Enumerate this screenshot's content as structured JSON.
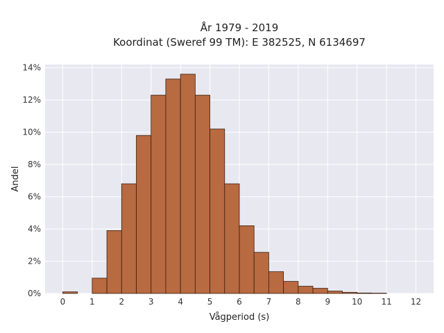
{
  "chart_data": {
    "type": "bar",
    "title_line1": "År 1979 - 2019",
    "title_line2": "Koordinat (Sweref 99 TM): E 382525, N 6134697",
    "xlabel": "Vågperiod (s)",
    "ylabel": "Andel",
    "xlim": [
      -0.6,
      12.6
    ],
    "ylim": [
      0,
      14.2
    ],
    "bin_width": 0.5,
    "x_ticks": [
      0,
      1,
      2,
      3,
      4,
      5,
      6,
      7,
      8,
      9,
      10,
      11,
      12
    ],
    "x_tick_labels": [
      "0",
      "1",
      "2",
      "3",
      "4",
      "5",
      "6",
      "7",
      "8",
      "9",
      "10",
      "11",
      "12"
    ],
    "y_ticks": [
      0,
      2,
      4,
      6,
      8,
      10,
      12,
      14
    ],
    "y_tick_labels": [
      "0%",
      "2%",
      "4%",
      "6%",
      "8%",
      "10%",
      "12%",
      "14%"
    ],
    "grid": true,
    "colors": {
      "bar": "#b86a40",
      "bar_edge": "#3a1f10",
      "plot_bg": "#e8e8f0",
      "grid": "#ffffff"
    },
    "bins": [
      {
        "x0": 0.0,
        "value": 0.1
      },
      {
        "x0": 1.0,
        "value": 0.95
      },
      {
        "x0": 1.5,
        "value": 3.9
      },
      {
        "x0": 2.0,
        "value": 6.8
      },
      {
        "x0": 2.5,
        "value": 9.8
      },
      {
        "x0": 3.0,
        "value": 12.3
      },
      {
        "x0": 3.5,
        "value": 13.3
      },
      {
        "x0": 4.0,
        "value": 13.6
      },
      {
        "x0": 4.5,
        "value": 12.3
      },
      {
        "x0": 5.0,
        "value": 10.2
      },
      {
        "x0": 5.5,
        "value": 6.8
      },
      {
        "x0": 6.0,
        "value": 4.2
      },
      {
        "x0": 6.5,
        "value": 2.55
      },
      {
        "x0": 7.0,
        "value": 1.35
      },
      {
        "x0": 7.5,
        "value": 0.75
      },
      {
        "x0": 8.0,
        "value": 0.45
      },
      {
        "x0": 8.5,
        "value": 0.32
      },
      {
        "x0": 9.0,
        "value": 0.15
      },
      {
        "x0": 9.5,
        "value": 0.07
      },
      {
        "x0": 10.0,
        "value": 0.03
      },
      {
        "x0": 10.5,
        "value": 0.02
      }
    ]
  }
}
